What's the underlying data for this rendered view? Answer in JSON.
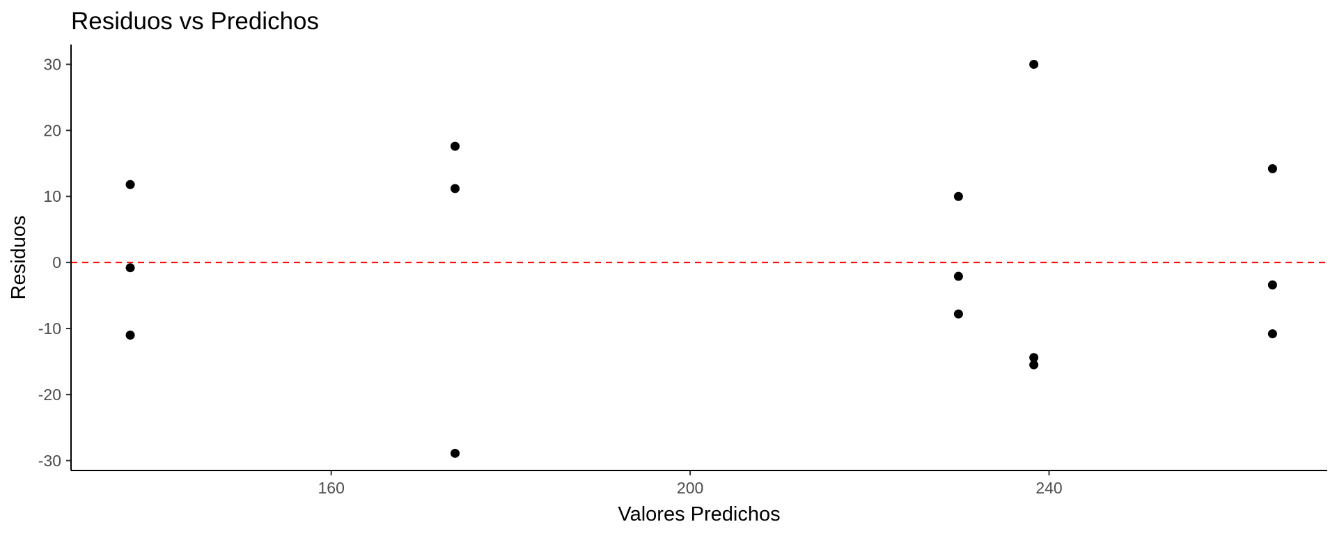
{
  "chart_data": {
    "type": "scatter",
    "title": "Residuos vs Predichos",
    "xlabel": "Valores Predichos",
    "ylabel": "Residuos",
    "xlim": [
      131,
      271
    ],
    "ylim": [
      -31.5,
      33
    ],
    "x_ticks": [
      160,
      200,
      240
    ],
    "x_tick_labels": [
      "160",
      "200",
      "240"
    ],
    "y_ticks": [
      30,
      20,
      10,
      0,
      -10,
      -20,
      -30
    ],
    "y_tick_labels": [
      "30",
      "20",
      "10",
      "0",
      "-10",
      "-20",
      "-30"
    ],
    "grid": false,
    "legend": "none",
    "reference_line": {
      "y": 0,
      "style": "dashed",
      "color": "#ff0000"
    },
    "point_color": "#000000",
    "points": [
      {
        "x": 137.6,
        "y": 11.8
      },
      {
        "x": 137.6,
        "y": -0.8
      },
      {
        "x": 137.6,
        "y": -11.0
      },
      {
        "x": 173.8,
        "y": 17.6
      },
      {
        "x": 173.8,
        "y": 11.2
      },
      {
        "x": 173.8,
        "y": -28.9
      },
      {
        "x": 229.9,
        "y": 10.0
      },
      {
        "x": 229.9,
        "y": -2.1
      },
      {
        "x": 229.9,
        "y": -7.8
      },
      {
        "x": 238.3,
        "y": 30.0
      },
      {
        "x": 238.3,
        "y": -14.4
      },
      {
        "x": 238.3,
        "y": -15.5
      },
      {
        "x": 264.9,
        "y": 14.2
      },
      {
        "x": 264.9,
        "y": -3.4
      },
      {
        "x": 264.9,
        "y": -10.8
      }
    ]
  }
}
